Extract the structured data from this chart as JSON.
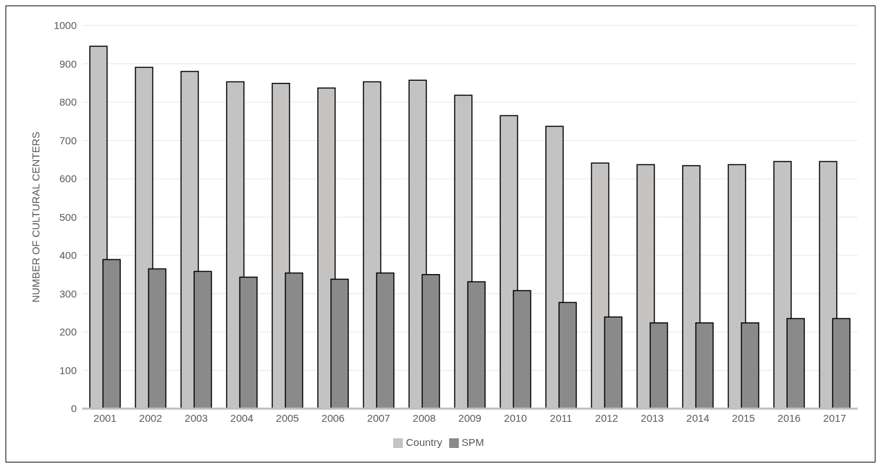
{
  "chart_data": {
    "type": "bar",
    "ylabel": "NUMBER OF CULTURAL CENTERS",
    "categories": [
      "2001",
      "2002",
      "2003",
      "2004",
      "2005",
      "2006",
      "2007",
      "2008",
      "2009",
      "2010",
      "2011",
      "2012",
      "2013",
      "2014",
      "2015",
      "2016",
      "2017"
    ],
    "series": [
      {
        "name": "Country",
        "color": "#c4c3c2",
        "values": [
          946,
          891,
          880,
          853,
          849,
          837,
          853,
          857,
          818,
          765,
          737,
          641,
          637,
          634,
          637,
          645,
          645
        ]
      },
      {
        "name": "SPM",
        "color": "#8a8a8a",
        "values": [
          389,
          365,
          358,
          343,
          354,
          338,
          354,
          350,
          331,
          308,
          277,
          239,
          224,
          224,
          224,
          235,
          235
        ]
      }
    ],
    "ylim": [
      0,
      1000
    ],
    "yticks": [
      0,
      100,
      200,
      300,
      400,
      500,
      600,
      700,
      800,
      900,
      1000
    ],
    "grid": "y",
    "legend": "bottom"
  }
}
